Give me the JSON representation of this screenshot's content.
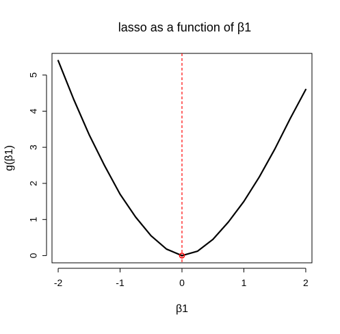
{
  "chart_data": {
    "type": "line",
    "title": "lasso as a function of β1",
    "xlabel": "β1",
    "ylabel": "g(β1)",
    "xlim": [
      -2.1,
      2.1
    ],
    "ylim": [
      -0.2,
      5.6
    ],
    "x_ticks": [
      -2,
      -1,
      0,
      1,
      2
    ],
    "x_tick_labels": [
      "-2",
      "-1",
      "0",
      "1",
      "2"
    ],
    "y_ticks": [
      0,
      1,
      2,
      3,
      4,
      5
    ],
    "y_tick_labels": [
      "0",
      "1",
      "2",
      "3",
      "4",
      "5"
    ],
    "grid": false,
    "legend": "none",
    "series": [
      {
        "x": [
          -2.0,
          -1.75,
          -1.5,
          -1.25,
          -1.0,
          -0.75,
          -0.5,
          -0.25,
          0.0,
          0.25,
          0.5,
          0.75,
          1.0,
          1.25,
          1.5,
          1.75,
          2.0
        ],
        "y": [
          5.4,
          4.33,
          3.35,
          2.49,
          1.7,
          1.07,
          0.55,
          0.18,
          0.0,
          0.12,
          0.45,
          0.93,
          1.5,
          2.18,
          2.95,
          3.8,
          4.6
        ],
        "color": "#000000"
      }
    ],
    "vertical_reference_line": {
      "x": 0,
      "color": "#ff0000",
      "style": "dashed"
    },
    "minimum_point": {
      "x": 0,
      "y": 0,
      "color": "#ff0000",
      "marker": "open-circle"
    }
  }
}
